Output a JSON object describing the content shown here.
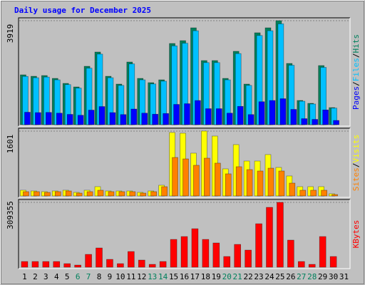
{
  "chart_data": {
    "type": "bar",
    "title": "Daily usage for December 2025",
    "categories": [
      "1",
      "2",
      "3",
      "4",
      "5",
      "6",
      "7",
      "8",
      "9",
      "10",
      "11",
      "12",
      "13",
      "14",
      "15",
      "16",
      "17",
      "18",
      "19",
      "20",
      "21",
      "22",
      "23",
      "24",
      "25",
      "26",
      "27",
      "28",
      "29",
      "30",
      "31"
    ],
    "weekends": [
      6,
      7,
      13,
      14,
      20,
      21,
      27,
      28
    ],
    "day_color": "#000000",
    "weekend_color": "#00805c",
    "title_color": "#0000ff",
    "separator": "/",
    "panels": [
      {
        "ylim": [
          0,
          3919
        ],
        "yticks": [
          3919
        ],
        "grid": true,
        "series": [
          {
            "name": "Hits",
            "color": "#00805c",
            "values": [
              1879,
              1825,
              1852,
              1745,
              1557,
              1423,
              2201,
              2738,
              1825,
              1530,
              2362,
              1745,
              1584,
              1691,
              3060,
              3167,
              3650,
              2416,
              2416,
              1745,
              2765,
              1530,
              3463,
              3650,
              3919,
              2308,
              913,
              805,
              2228,
              644,
              0
            ]
          },
          {
            "name": "Files",
            "color": "#00c0ff",
            "values": [
              1820,
              1770,
              1795,
              1690,
              1510,
              1380,
              2130,
              2660,
              1770,
              1480,
              2290,
              1690,
              1535,
              1640,
              2970,
              3070,
              3540,
              2340,
              2340,
              1690,
              2680,
              1480,
              3360,
              3540,
              3800,
              2240,
              885,
              780,
              2160,
              625,
              0
            ]
          },
          {
            "name": "Pages",
            "color": "#0000ff",
            "values": [
              470,
              456,
              463,
              436,
              389,
              356,
              550,
              684,
              456,
              382,
              590,
              436,
              396,
              423,
              765,
              792,
              912,
              604,
              604,
              436,
              691,
              382,
              866,
              912,
              980,
              577,
              228,
              201,
              557,
              161,
              0
            ]
          }
        ]
      },
      {
        "ylim": [
          0,
          1601
        ],
        "yticks": [
          1601
        ],
        "grid": true,
        "series": [
          {
            "name": "Visits",
            "color": "#ffff00",
            "values": [
              141,
              123,
              106,
              123,
              141,
              88,
              141,
              229,
              123,
              123,
              123,
              88,
              123,
              264,
              1566,
              1549,
              1056,
              1601,
              1478,
              669,
              1267,
              862,
              862,
              1021,
              704,
              493,
              229,
              229,
              229,
              53,
              0
            ]
          },
          {
            "name": "Sites",
            "color": "#ff8000",
            "values": [
              106,
              106,
              88,
              106,
              123,
              70,
              106,
              141,
              106,
              106,
              106,
              70,
              106,
              229,
              950,
              915,
              757,
              933,
              810,
              546,
              722,
              651,
              616,
              686,
              616,
              317,
              141,
              141,
              141,
              35,
              0
            ]
          }
        ]
      },
      {
        "ylim": [
          0,
          309355
        ],
        "yticks": [
          309355
        ],
        "grid": true,
        "series": [
          {
            "name": "KBytes",
            "color": "#ff0000",
            "values": [
              27200,
              27200,
              27200,
              27200,
              17000,
              10200,
              61200,
              91800,
              37400,
              17000,
              74800,
              34000,
              13600,
              27200,
              132600,
              146200,
              183600,
              132600,
              115600,
              51000,
              108800,
              81600,
              207400,
              285600,
              309355,
              129200,
              27200,
              13600,
              146200,
              51000,
              0
            ]
          }
        ]
      }
    ]
  }
}
